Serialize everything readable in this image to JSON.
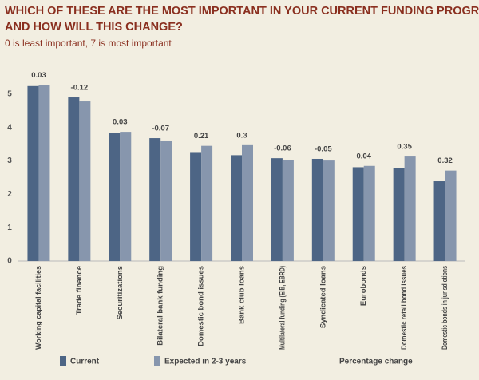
{
  "chart_data": {
    "type": "bar",
    "title": "WHICH OF THESE ARE THE MOST IMPORTANT IN YOUR CURRENT FUNDING PROGRAMME?",
    "title_line2": "AND HOW WILL THIS CHANGE?",
    "subtitle": "0 is least important, 7 is most important",
    "categories": [
      "Working capital facilities",
      "Trade finance",
      "Securitizations",
      "Bilateral bank funding",
      "Domestic bond issues",
      "Bank club loans",
      "Multilateral funding (EIB, EBRD)",
      "Syndicated loans",
      "Eurobonds",
      "Domestic retail bond issues",
      "Domestic bonds in jurisdictions"
    ],
    "series": [
      {
        "name": "Current",
        "color": "#4d6585",
        "values": [
          5.24,
          4.9,
          3.84,
          3.68,
          3.24,
          3.17,
          3.08,
          3.06,
          2.81,
          2.78,
          2.39
        ]
      },
      {
        "name": "Expected in 2-3 years",
        "color": "#8796ad",
        "values": [
          5.27,
          4.78,
          3.87,
          3.61,
          3.45,
          3.47,
          3.02,
          3.01,
          2.85,
          3.13,
          2.71
        ]
      },
      {
        "name": "Percentage change",
        "values": [
          0.03,
          -0.12,
          0.03,
          -0.07,
          0.21,
          0.3,
          -0.06,
          -0.05,
          0.04,
          0.35,
          0.32
        ]
      }
    ],
    "ylim": [
      0,
      6
    ],
    "yticks": [
      0,
      1,
      2,
      3,
      4,
      5
    ],
    "grid": false
  }
}
